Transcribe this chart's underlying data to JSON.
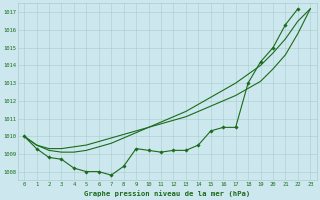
{
  "title": "Graphe pression niveau de la mer (hPa)",
  "x_labels": [
    "0",
    "1",
    "2",
    "3",
    "4",
    "5",
    "6",
    "7",
    "8",
    "9",
    "10",
    "11",
    "12",
    "13",
    "14",
    "15",
    "16",
    "17",
    "18",
    "19",
    "20",
    "21",
    "22",
    "23"
  ],
  "ylim": [
    1007.5,
    1017.5
  ],
  "yticks": [
    1008,
    1009,
    1010,
    1011,
    1012,
    1013,
    1014,
    1015,
    1016,
    1017
  ],
  "bg_color": "#cce8ee",
  "grid_color": "#aacccc",
  "line_color": "#1a6b1a",
  "marker_color": "#1a6b1a",
  "series1": [
    1010.0,
    1009.3,
    1008.8,
    1008.7,
    1008.2,
    1008.0,
    1008.0,
    1007.8,
    1008.3,
    1009.3,
    1009.2,
    1009.1,
    1009.2,
    1009.2,
    1009.5,
    1010.3,
    1010.5,
    1010.5,
    1013.0,
    1014.2,
    1015.0,
    1016.3,
    1017.2,
    null
  ],
  "series2": [
    1010.0,
    1009.5,
    1009.3,
    1009.3,
    1009.4,
    1009.5,
    1009.7,
    1009.9,
    1010.1,
    1010.3,
    1010.5,
    1010.7,
    1010.9,
    1011.1,
    1011.4,
    1011.7,
    1012.0,
    1012.3,
    1012.7,
    1013.1,
    1013.8,
    1014.6,
    1015.8,
    1017.2
  ],
  "series3": [
    1010.0,
    1009.5,
    1009.2,
    1009.1,
    1009.1,
    1009.2,
    1009.4,
    1009.6,
    1009.9,
    1010.2,
    1010.5,
    1010.8,
    1011.1,
    1011.4,
    1011.8,
    1012.2,
    1012.6,
    1013.0,
    1013.5,
    1014.0,
    1014.7,
    1015.5,
    1016.5,
    1017.2
  ]
}
